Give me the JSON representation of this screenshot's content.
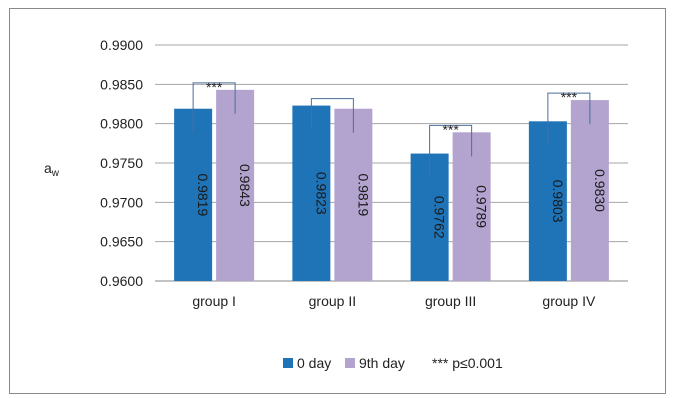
{
  "chart_data": {
    "type": "bar",
    "title": "",
    "xlabel": "",
    "ylabel": "aw",
    "ylabel_main": "a",
    "ylabel_sub": "w",
    "ylim": [
      0.96,
      0.99
    ],
    "yticks": [
      "0.9600",
      "0.9650",
      "0.9700",
      "0.9750",
      "0.9800",
      "0.9850",
      "0.9900"
    ],
    "ytick_values": [
      0.96,
      0.965,
      0.97,
      0.975,
      0.98,
      0.985,
      0.99
    ],
    "grid": true,
    "categories": [
      "group I",
      "group II",
      "group III",
      "group IV"
    ],
    "series": [
      {
        "name": "0 day",
        "values": [
          0.9819,
          0.9823,
          0.9762,
          0.9803
        ],
        "labels": [
          "0.9819",
          "0.9823",
          "0.9762",
          "0.9803"
        ],
        "color": "#1f73b7"
      },
      {
        "name": "9th day",
        "values": [
          0.9843,
          0.9819,
          0.9789,
          0.983
        ],
        "labels": [
          "0.9843",
          "0.9819",
          "0.9789",
          "0.9830"
        ],
        "color": "#b3a3cf"
      }
    ],
    "significance": [
      "***",
      "",
      "***",
      "***"
    ],
    "legend_position": "bottom",
    "legend_note": "*** p≤0.001"
  }
}
